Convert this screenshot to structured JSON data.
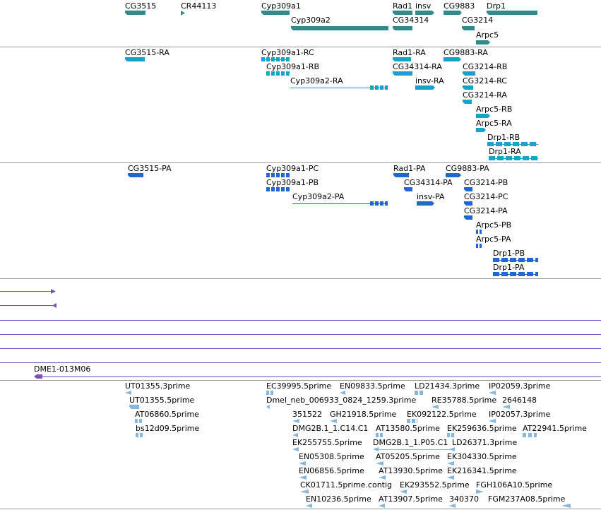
{
  "colors": {
    "gene": "#2f8c8c",
    "mrna": "#12a5c9",
    "protein": "#2266d6",
    "bac": "#7b52b0",
    "est": "#86b7de",
    "separator": "#9a9a9a"
  },
  "tracks": {
    "genes": {
      "labels": [
        "CG3515",
        "CR44113",
        "Cyp309a1",
        "Cyp309a2",
        "Rad1",
        "insv",
        "CG34314",
        "CG9883",
        "CG3214",
        "Drp1",
        "Arpc5"
      ]
    },
    "mrna": {
      "labels": [
        "CG3515-RA",
        "Cyp309a1-RC",
        "Cyp309a1-RB",
        "Cyp309a2-RA",
        "Rad1-RA",
        "CG34314-RA",
        "insv-RA",
        "CG9883-RA",
        "CG3214-RB",
        "CG3214-RC",
        "CG3214-RA",
        "Arpc5-RB",
        "Arpc5-RA",
        "Drp1-RB",
        "Drp1-RA"
      ]
    },
    "protein": {
      "labels": [
        "CG3515-PA",
        "Cyp309a1-PC",
        "Cyp309a1-PB",
        "Cyp309a2-PA",
        "Rad1-PA",
        "CG34314-PA",
        "insv-PA",
        "CG9883-PA",
        "CG3214-PB",
        "CG3214-PC",
        "CG3214-PA",
        "Arpc5-PB",
        "Arpc5-PA",
        "Drp1-PB",
        "Drp1-PA"
      ]
    },
    "bac": {
      "label": "DME1-013M06"
    },
    "est": {
      "labels": [
        "UT01355.3prime",
        "UT01355.5prime",
        "AT06860.5prime",
        "bs12d09.5prime",
        "EC39995.5prime",
        "EN09833.5prime",
        "LD21434.3prime",
        "IP02059.3prime",
        "Dmel_neb_006933_0824_1259.3prime",
        "RE35788.5prime",
        "2646148",
        "351522",
        "GH21918.5prime",
        "EK092122.5prime",
        "IP02057.3prime",
        "DMG2B.1_1.C14.C1",
        "AT13580.5prime",
        "EK259636.5prime",
        "AT22941.5prime",
        "EK255755.5prime",
        "DMG2B.1_1.P05.C1",
        "LD26371.3prime",
        "EN05308.5prime",
        "AT05205.5prime",
        "EK304330.5prime",
        "EN06856.5prime",
        "AT13930.5prime",
        "EK216341.5prime",
        "CK01711.5prime.contig",
        "EK293552.5prime",
        "FGH106A10.5prime",
        "EN10236.5prime",
        "AT13907.5prime",
        "340370",
        "FGM237A08.5prime"
      ]
    }
  }
}
